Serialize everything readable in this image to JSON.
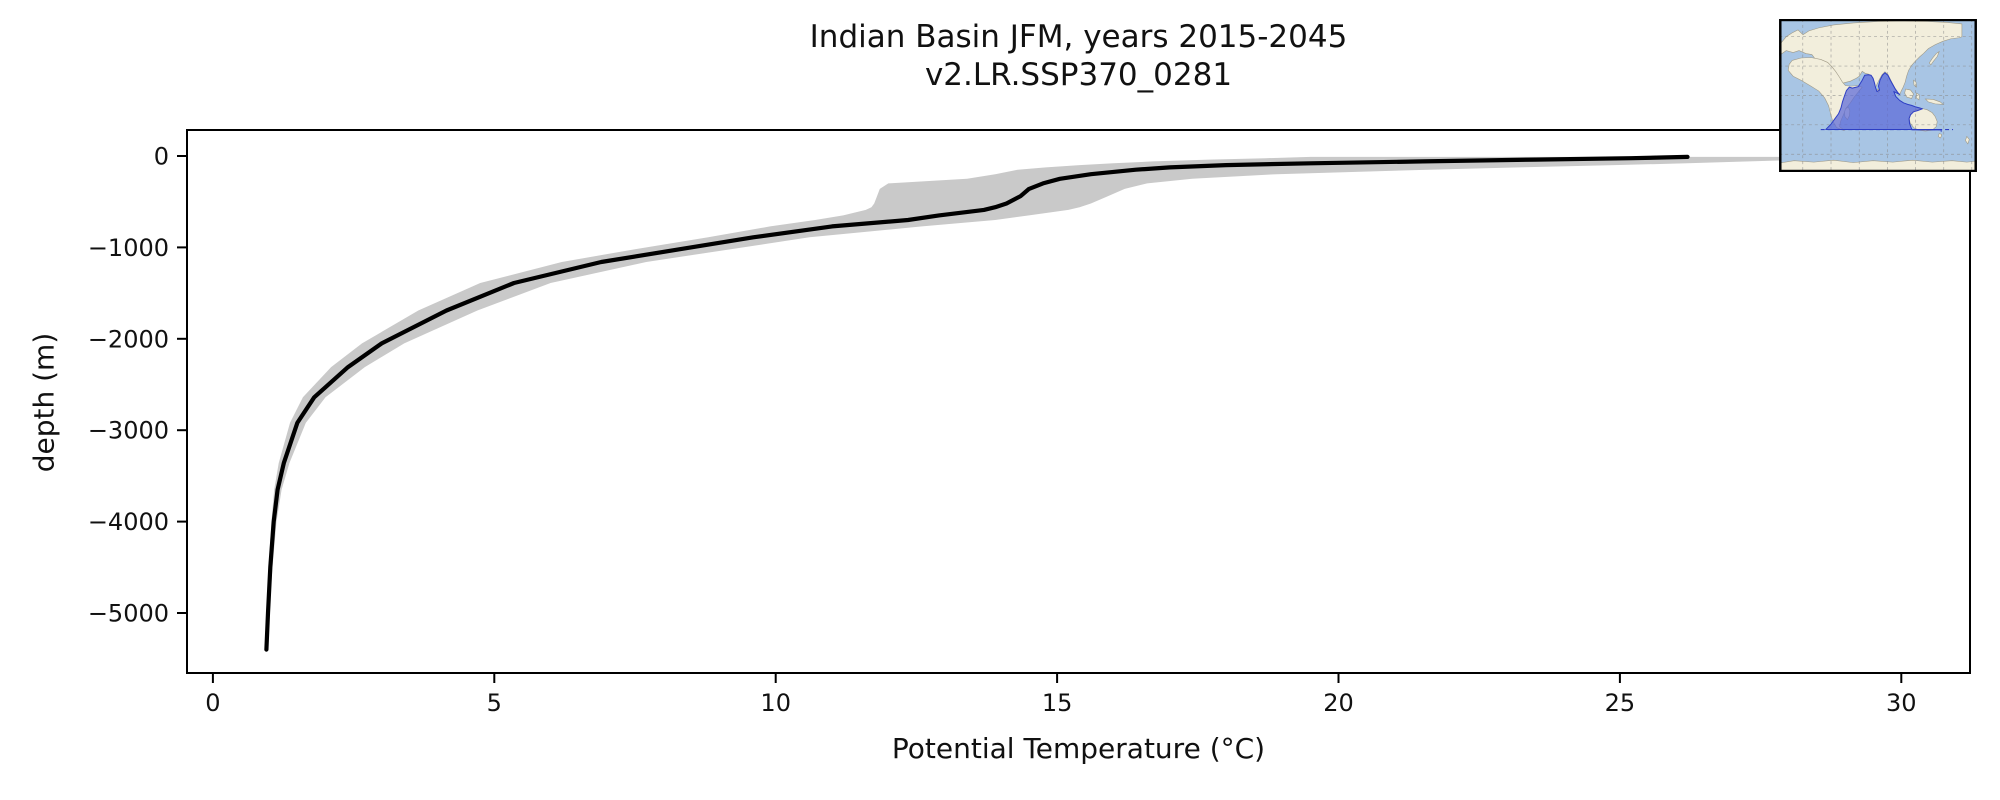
{
  "figure": {
    "title_line1": "Indian Basin JFM, years 2015-2045",
    "title_line2": "v2.LR.SSP370_0281"
  },
  "chart_data": {
    "type": "line",
    "title": "Indian Basin JFM, years 2015-2045",
    "subtitle": "v2.LR.SSP370_0281",
    "xlabel": "Potential Temperature (°C)",
    "ylabel": "depth (m)",
    "xlim": [
      -0.46,
      31.22
    ],
    "ylim": [
      -5656,
      284
    ],
    "x_ticks": [
      0,
      5,
      10,
      15,
      20,
      25,
      30
    ],
    "x_tick_labels": [
      "0",
      "5",
      "10",
      "15",
      "20",
      "25",
      "30"
    ],
    "y_ticks": [
      0,
      -1000,
      -2000,
      -3000,
      -4000,
      -5000
    ],
    "y_tick_labels": [
      "0",
      "−1000",
      "−2000",
      "−3000",
      "−4000",
      "−5000"
    ],
    "grid": false,
    "legend": false,
    "line_color": "#000000",
    "band_color": "#c9c9c9",
    "series": [
      {
        "name": "mean-potential-temperature-profile",
        "depth_m": [
          -10,
          -25,
          -40,
          -60,
          -80,
          -100,
          -125,
          -150,
          -200,
          -250,
          -300,
          -360,
          -440,
          -520,
          -560,
          -590,
          -650,
          -700,
          -770,
          -890,
          -1020,
          -1160,
          -1390,
          -1690,
          -2050,
          -2310,
          -2640,
          -2920,
          -3360,
          -3650,
          -4000,
          -4500,
          -5000,
          -5400
        ],
        "temperature_c": [
          26.2,
          25.2,
          23.5,
          21.5,
          19.5,
          18.0,
          17.0,
          16.4,
          15.6,
          15.05,
          14.75,
          14.5,
          14.35,
          14.1,
          13.9,
          13.7,
          12.9,
          12.35,
          11.0,
          9.6,
          8.3,
          6.9,
          5.35,
          4.15,
          3.0,
          2.4,
          1.8,
          1.5,
          1.26,
          1.15,
          1.08,
          1.02,
          0.98,
          0.95
        ]
      }
    ],
    "envelope": {
      "name": "spread-band",
      "depth_m": [
        -10,
        -25,
        -40,
        -60,
        -80,
        -100,
        -125,
        -150,
        -200,
        -250,
        -300,
        -360,
        -440,
        -520,
        -560,
        -590,
        -650,
        -700,
        -770,
        -890,
        -1020,
        -1160,
        -1390,
        -1690,
        -2050,
        -2310,
        -2640,
        -2920,
        -3360,
        -3650,
        -4000,
        -4500,
        -5000,
        -5400
      ],
      "t_min": [
        19.5,
        18.7,
        17.7,
        16.7,
        16.0,
        15.4,
        14.8,
        14.3,
        13.9,
        13.4,
        12.0,
        11.85,
        11.8,
        11.75,
        11.7,
        11.6,
        11.2,
        10.7,
        9.9,
        8.8,
        7.5,
        6.2,
        4.75,
        3.65,
        2.65,
        2.1,
        1.6,
        1.37,
        1.17,
        1.09,
        1.04,
        0.99,
        0.955,
        0.93
      ],
      "t_max": [
        29.7,
        29.2,
        28.4,
        27.3,
        26.2,
        24.9,
        23.2,
        21.6,
        18.9,
        17.4,
        16.6,
        16.2,
        15.9,
        15.6,
        15.4,
        15.2,
        14.5,
        13.9,
        12.6,
        10.6,
        9.2,
        7.7,
        6.0,
        4.7,
        3.4,
        2.7,
        2.0,
        1.65,
        1.36,
        1.22,
        1.13,
        1.06,
        1.0,
        0.965
      ]
    }
  },
  "inset_map": {
    "ocean_color": "#a8c5e4",
    "land_color": "#f2eedc",
    "coast_color": "#a09a86",
    "grid_color": "#8a8a8a",
    "highlight_fill": "#5b6ad8",
    "highlight_outline": "#2d3ec4",
    "border_color": "#000000"
  }
}
